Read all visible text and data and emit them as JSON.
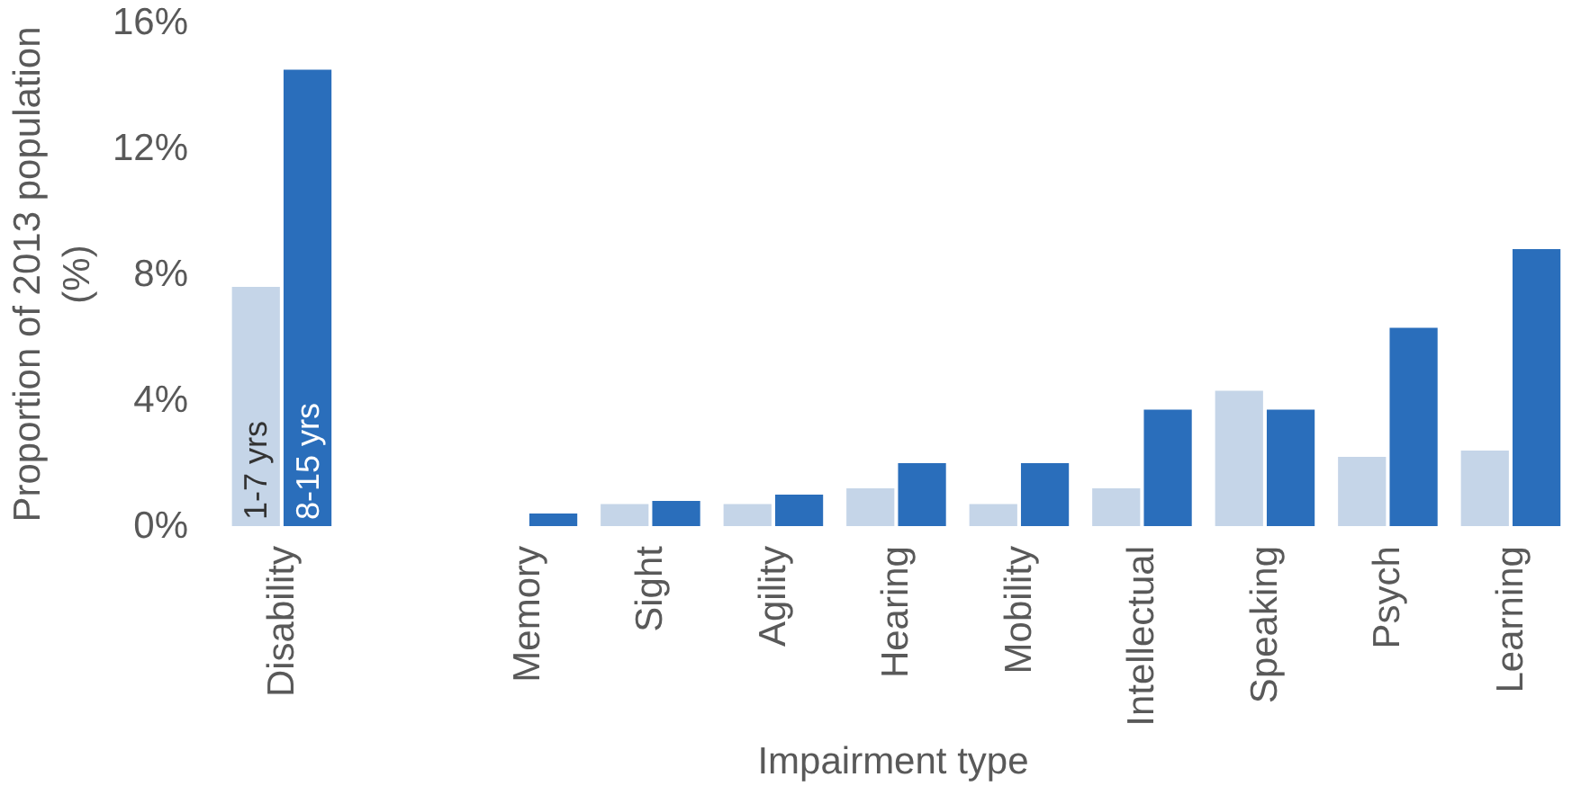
{
  "chart_data": {
    "type": "bar",
    "xlabel": "Impairment type",
    "ylabel": "Proportion of 2013 population\n(%)",
    "categories": [
      "Disability",
      null,
      "Memory",
      "Sight",
      "Agility",
      "Hearing",
      "Mobility",
      "Intellectual",
      "Speaking",
      "Psych",
      "Learning"
    ],
    "series": [
      {
        "name": "1-7 yrs",
        "color": "#c5d5e8",
        "values": [
          7.6,
          null,
          0,
          0.7,
          0.7,
          1.2,
          0.7,
          1.2,
          4.3,
          2.2,
          2.4
        ]
      },
      {
        "name": "8-15 yrs",
        "color": "#2a6ebb",
        "values": [
          14.5,
          null,
          0.4,
          0.8,
          1.0,
          2.0,
          2.0,
          3.7,
          3.7,
          6.3,
          8.8
        ]
      }
    ],
    "ylim": [
      0,
      16
    ],
    "yticks": [
      {
        "value": 0,
        "label": "0%"
      },
      {
        "value": 4,
        "label": "4%"
      },
      {
        "value": 8,
        "label": "8%"
      },
      {
        "value": 12,
        "label": "12%"
      },
      {
        "value": 16,
        "label": "16%"
      }
    ],
    "grid": false
  }
}
